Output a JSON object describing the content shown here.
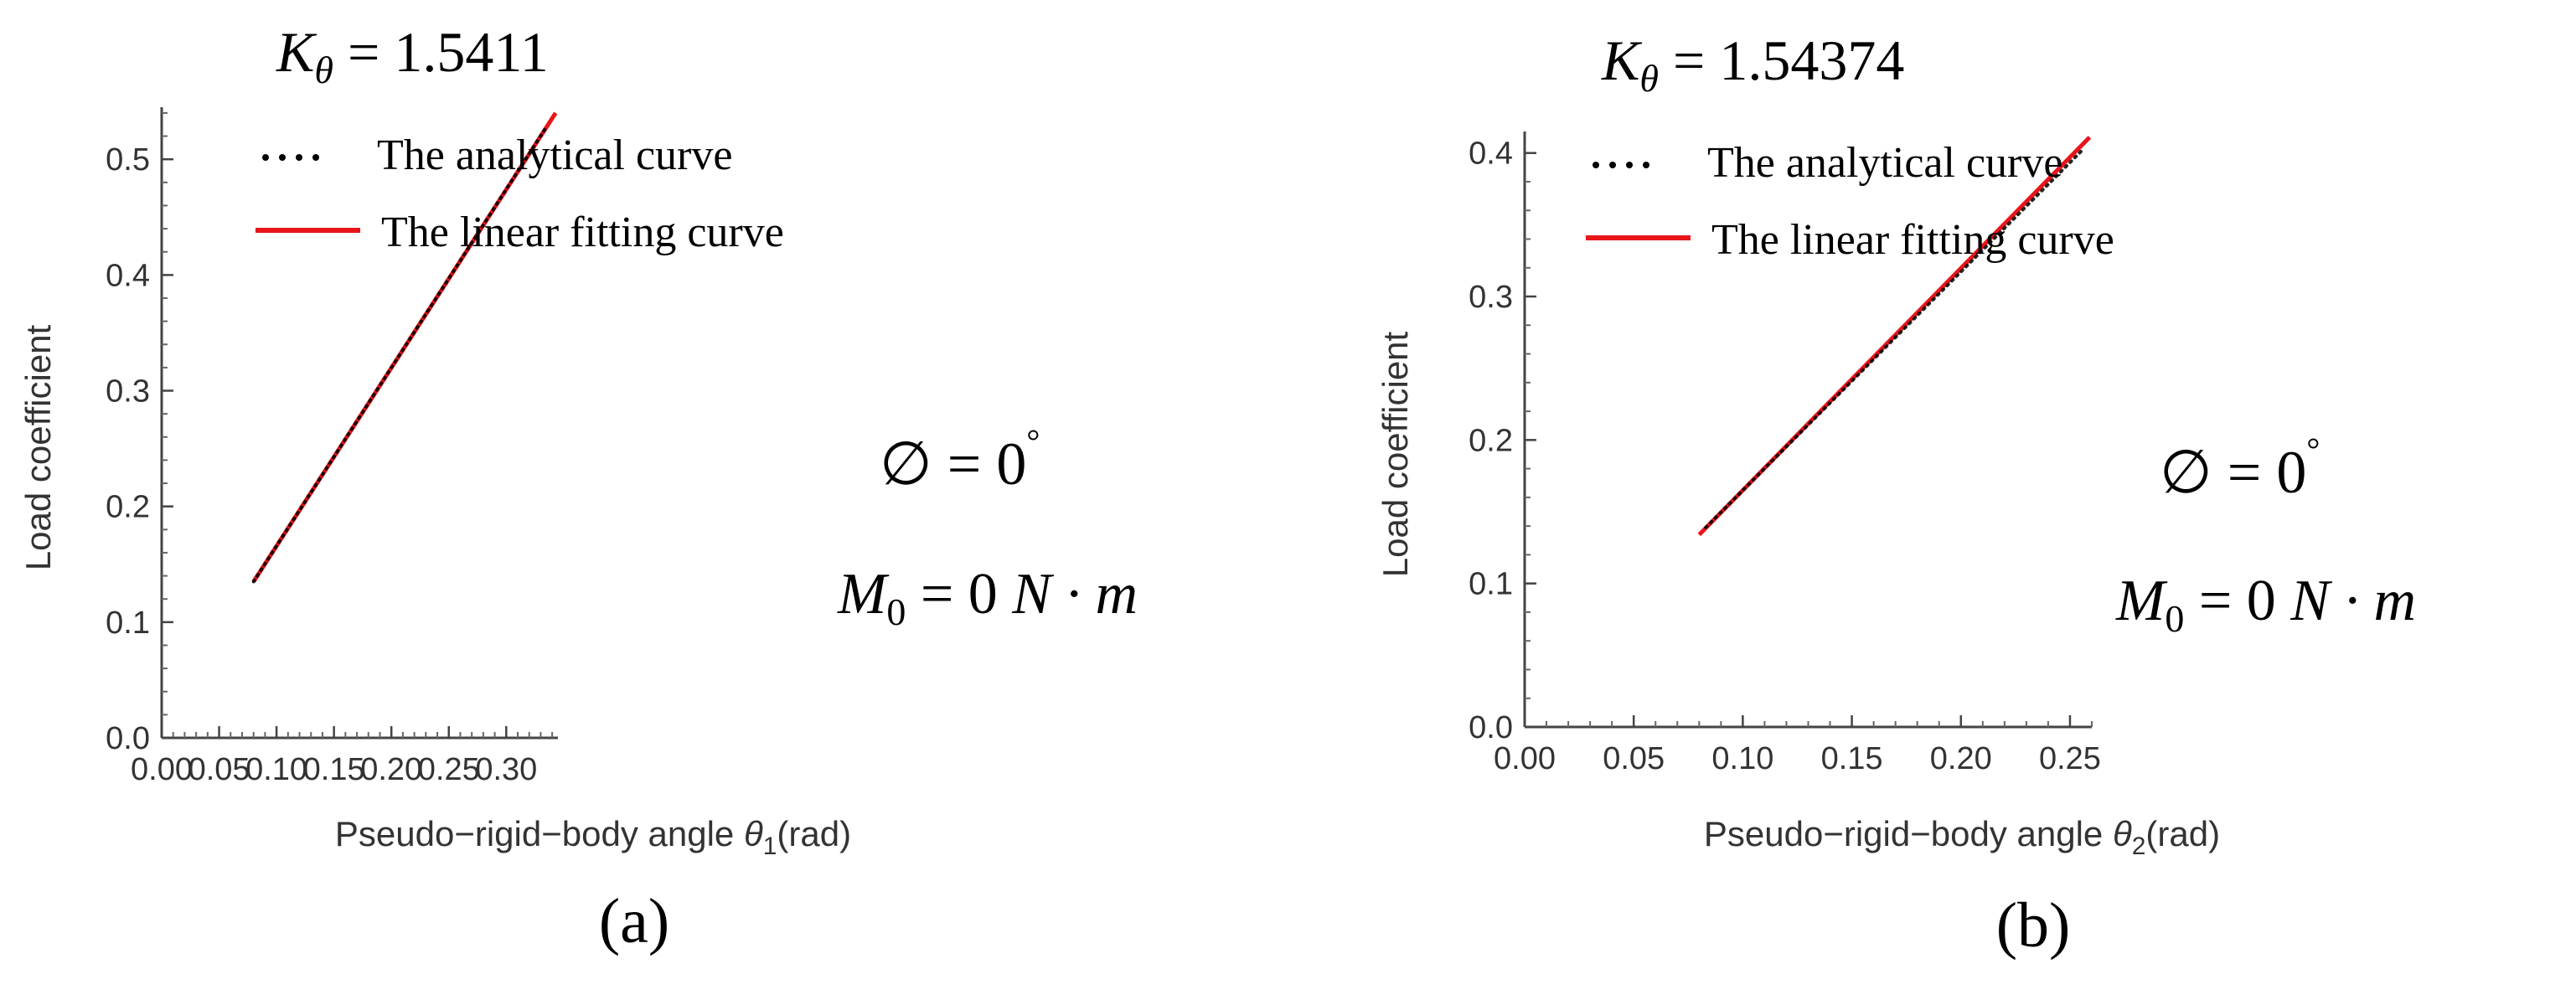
{
  "chart_data": [
    {
      "type": "line",
      "panel_label": "(a)",
      "k_label": {
        "symbol": "K",
        "sub": "θ",
        "eq": "= 1.5411"
      },
      "phi_label": {
        "symbol": "∅",
        "eq": "= 0",
        "deg": "°"
      },
      "m_label": {
        "symbol": "M",
        "sub": "0",
        "eq": "= 0",
        "unit": "N · m"
      },
      "xlabel": {
        "text": "Pseudo−rigid−body angle ",
        "sym": "θ",
        "sub": "1",
        "unit": "(rad)"
      },
      "ylabel": "Load coefficient",
      "xlim": [
        0,
        0.345
      ],
      "ylim": [
        0,
        0.545
      ],
      "xticks": [
        0.0,
        0.05,
        0.1,
        0.15,
        0.2,
        0.25,
        0.3
      ],
      "xtick_labels": [
        "0.00",
        "0.05",
        "0.10",
        "0.15",
        "0.20",
        "0.25",
        "0.30"
      ],
      "yticks": [
        0.0,
        0.1,
        0.2,
        0.3,
        0.4,
        0.5
      ],
      "ytick_labels": [
        "0.0",
        "0.1",
        "0.2",
        "0.3",
        "0.4",
        "0.5"
      ],
      "legend_position": "top-left",
      "series": [
        {
          "name": "The analytical curve",
          "style": "dotted",
          "color": "#000000",
          "x_start": 0.08,
          "x_end": 0.335,
          "y_start": 0.135,
          "y_end": 0.528
        },
        {
          "name": "The linear fitting curve",
          "style": "solid",
          "color": "#e8151b",
          "x_start": 0.08,
          "x_end": 0.343,
          "y_start": 0.135,
          "y_end": 0.54
        }
      ]
    },
    {
      "type": "line",
      "panel_label": "(b)",
      "k_label": {
        "symbol": "K",
        "sub": "θ",
        "eq": "= 1.54374"
      },
      "phi_label": {
        "symbol": "∅",
        "eq": "= 0",
        "deg": "°"
      },
      "m_label": {
        "symbol": "M",
        "sub": "0",
        "eq": "= 0",
        "unit": "N · m"
      },
      "xlabel": {
        "text": "Pseudo−rigid−body angle ",
        "sym": "θ",
        "sub": "2",
        "unit": "(rad)"
      },
      "ylabel": "Load coefficient",
      "xlim": [
        0,
        0.26
      ],
      "ylim": [
        0,
        0.415
      ],
      "xticks": [
        0.0,
        0.05,
        0.1,
        0.15,
        0.2,
        0.25
      ],
      "xtick_labels": [
        "0.00",
        "0.05",
        "0.10",
        "0.15",
        "0.20",
        "0.25"
      ],
      "yticks": [
        0.0,
        0.1,
        0.2,
        0.3,
        0.4
      ],
      "ytick_labels": [
        "0.0",
        "0.1",
        "0.2",
        "0.3",
        "0.4"
      ],
      "legend_position": "top-left",
      "series": [
        {
          "name": "The analytical curve",
          "style": "dotted",
          "color": "#000000",
          "x_start": 0.083,
          "x_end": 0.255,
          "y_start": 0.139,
          "y_end": 0.401
        },
        {
          "name": "The linear fitting curve",
          "style": "solid",
          "color": "#e8151b",
          "x_start": 0.08,
          "x_end": 0.259,
          "y_start": 0.134,
          "y_end": 0.411
        }
      ]
    }
  ]
}
